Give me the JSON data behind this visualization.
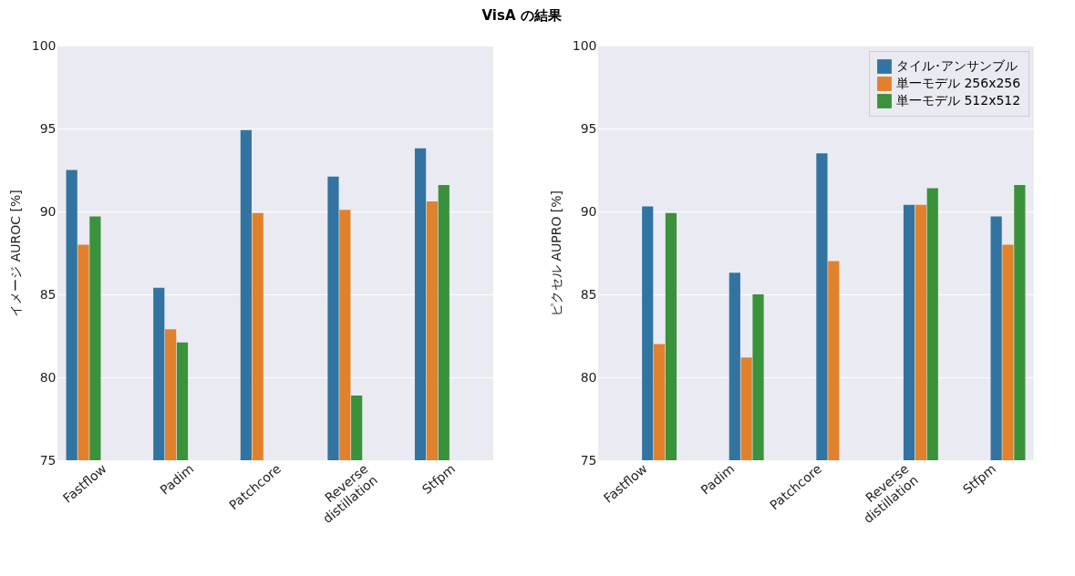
{
  "chart_data": [
    {
      "type": "bar",
      "title": "VisA の結果",
      "ylabel": "イメージ AUROC [%]",
      "categories": [
        "Fastflow",
        "Padim",
        "Patchcore",
        "Reverse\ndistillation",
        "Stfpm"
      ],
      "ylim": [
        75,
        100
      ],
      "yticks": [
        75,
        80,
        85,
        90,
        95,
        100
      ],
      "grid": "y",
      "series": [
        {
          "color": "#3274a1",
          "values": [
            92.5,
            85.4,
            94.9,
            92.1,
            93.8
          ]
        },
        {
          "color": "#e1812c",
          "values": [
            88.0,
            82.9,
            89.9,
            90.1,
            90.6
          ]
        },
        {
          "color": "#3a923a",
          "values": [
            89.7,
            82.1,
            null,
            78.9,
            91.6
          ]
        }
      ]
    },
    {
      "type": "bar",
      "ylabel": "ピクセル AUPRO [%]",
      "categories": [
        "Fastflow",
        "Padim",
        "Patchcore",
        "Reverse\ndistillation",
        "Stfpm"
      ],
      "ylim": [
        75,
        100
      ],
      "yticks": [
        75,
        80,
        85,
        90,
        95,
        100
      ],
      "grid": "y",
      "legend": "top right",
      "series": [
        {
          "name": "タイル･アンサンブル",
          "color": "#3274a1",
          "values": [
            90.3,
            86.3,
            93.5,
            90.4,
            89.7
          ]
        },
        {
          "name": "単一モデル 256x256",
          "color": "#e1812c",
          "values": [
            82.0,
            81.2,
            87.0,
            90.4,
            88.0
          ]
        },
        {
          "name": "単一モデル 512x512",
          "color": "#3a923a",
          "values": [
            89.9,
            85.0,
            null,
            91.4,
            91.6
          ]
        }
      ]
    }
  ]
}
